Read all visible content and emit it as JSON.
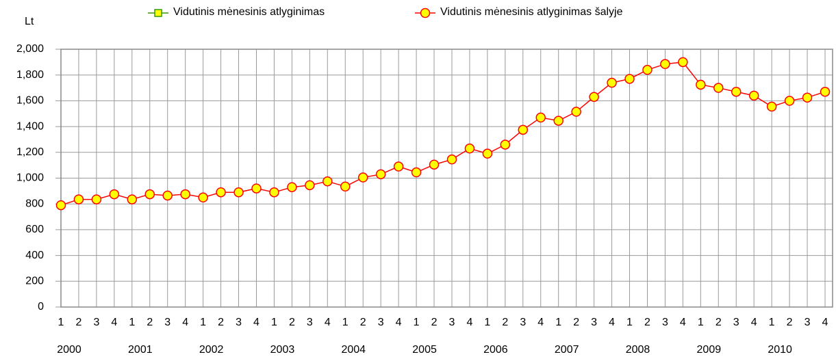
{
  "chart_data": {
    "type": "line",
    "y_label": "Lt",
    "categories": [
      "1",
      "2",
      "3",
      "4",
      "1",
      "2",
      "3",
      "4",
      "1",
      "2",
      "3",
      "4",
      "1",
      "2",
      "3",
      "4",
      "1",
      "2",
      "3",
      "4",
      "1",
      "2",
      "3",
      "4",
      "1",
      "2",
      "3",
      "4",
      "1",
      "2",
      "3",
      "4",
      "1",
      "2",
      "3",
      "4",
      "1",
      "2",
      "3",
      "4",
      "1",
      "2",
      "3",
      "4"
    ],
    "category_groups": [
      "2000",
      "2001",
      "2002",
      "2003",
      "2004",
      "2005",
      "2006",
      "2007",
      "2008",
      "2009",
      "2010"
    ],
    "series": [
      {
        "name": "Vidutinis mėnesinis atlyginimas",
        "color": "#339900",
        "marker": "square",
        "values": [
          null,
          null,
          null,
          null,
          null,
          null,
          null,
          null,
          null,
          null,
          null,
          null,
          null,
          null,
          null,
          null,
          null,
          null,
          null,
          null,
          null,
          null,
          null,
          null,
          null,
          null,
          null,
          null,
          null,
          null,
          null,
          null,
          null,
          null,
          null,
          null,
          null,
          null,
          null,
          null,
          null,
          null,
          null,
          null
        ]
      },
      {
        "name": "Vidutinis mėnesinis atlyginimas šalyje",
        "color": "#ff0000",
        "marker": "circle",
        "values": [
          790,
          835,
          835,
          875,
          835,
          875,
          865,
          875,
          850,
          890,
          890,
          920,
          890,
          930,
          945,
          975,
          935,
          1005,
          1030,
          1090,
          1045,
          1105,
          1145,
          1230,
          1190,
          1260,
          1375,
          1470,
          1445,
          1515,
          1630,
          1740,
          1770,
          1840,
          1885,
          1900,
          1725,
          1700,
          1670,
          1640,
          1555,
          1600,
          1625,
          1670
        ]
      }
    ],
    "ylim": [
      0,
      2000
    ],
    "yticks": [
      0,
      200,
      400,
      600,
      800,
      {
        "value": 1000,
        "label": "1,000"
      },
      {
        "value": 1200,
        "label": "1,200"
      },
      {
        "value": 1400,
        "label": "1,400"
      },
      {
        "value": 1600,
        "label": "1,600"
      },
      {
        "value": 1800,
        "label": "1,800"
      },
      {
        "value": 2000,
        "label": "2,000"
      }
    ],
    "grid": true
  }
}
